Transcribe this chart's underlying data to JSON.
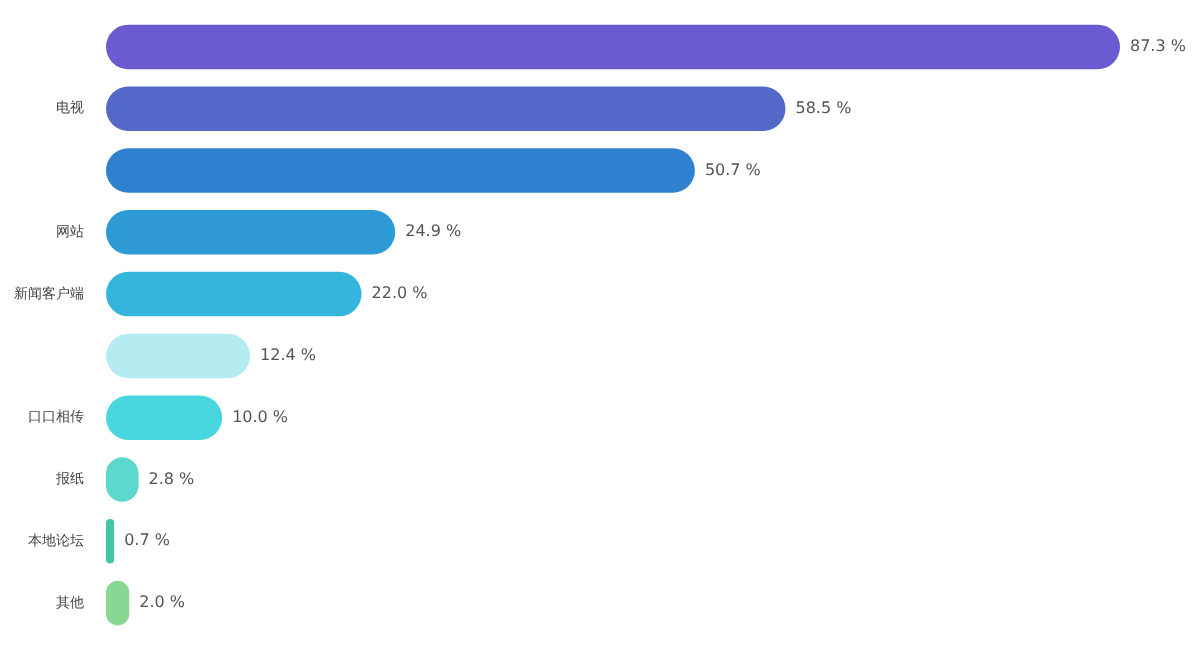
{
  "chart_data": {
    "type": "bar",
    "orientation": "horizontal",
    "categories": [
      null,
      "电视",
      null,
      "网站",
      "新闻客户端",
      null,
      "口口相传",
      "报纸",
      "本地论坛",
      "其他"
    ],
    "values": [
      87.3,
      58.5,
      50.7,
      24.9,
      22.0,
      12.4,
      10.0,
      2.8,
      0.7,
      2.0
    ],
    "value_labels": [
      "87.3 %",
      "58.5 %",
      "50.7 %",
      "24.9 %",
      "22.0 %",
      "12.4 %",
      "10.0 %",
      "2.8 %",
      "0.7 %",
      "2.0 %"
    ],
    "colors": [
      "#6a5cd0",
      "#5468c8",
      "#2f80cf",
      "#2d9ad6",
      "#34b6dc",
      "#b4ecf2",
      "#48d6df",
      "#5cd8cc",
      "#44c4a8",
      "#88d894"
    ],
    "tick_labels": "y",
    "grid": false,
    "legend": false
  }
}
